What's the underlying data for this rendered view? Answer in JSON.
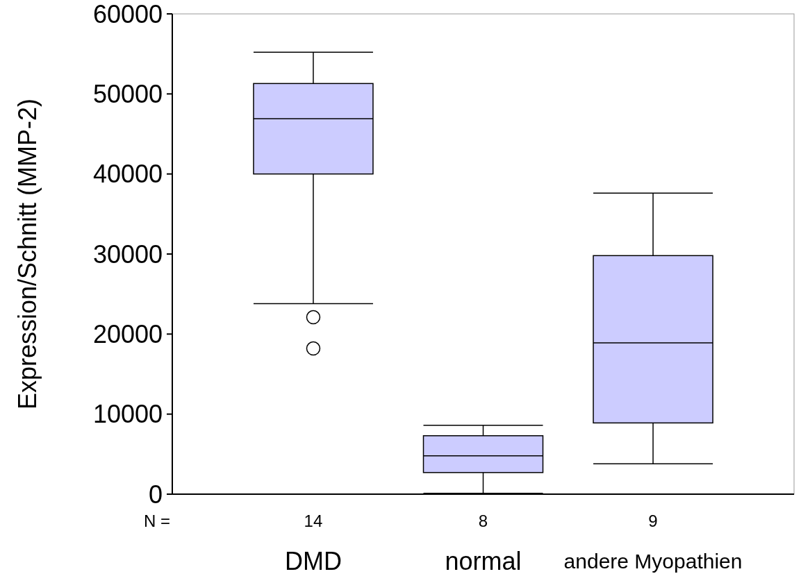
{
  "chart_data": {
    "type": "box",
    "ylabel": "Expression/Schnitt (MMP-2)",
    "categories": [
      "DMD",
      "normal",
      "andere Myopathien"
    ],
    "boxes": [
      {
        "low": 23800,
        "q1": 40000,
        "median": 46900,
        "q3": 51300,
        "high": 55200,
        "outliers": [
          22100,
          18200
        ]
      },
      {
        "low": 100,
        "q1": 2700,
        "median": 4800,
        "q3": 7300,
        "high": 8600
      },
      {
        "low": 3800,
        "q1": 8900,
        "median": 18900,
        "q3": 29800,
        "high": 37600
      }
    ],
    "color": "#ccccff",
    "ylim": [
      0,
      60000
    ],
    "yticks": [
      0,
      10000,
      20000,
      30000,
      40000,
      50000,
      60000
    ],
    "grid": false,
    "annotations": [
      "N =",
      "14",
      "8",
      "9"
    ]
  }
}
